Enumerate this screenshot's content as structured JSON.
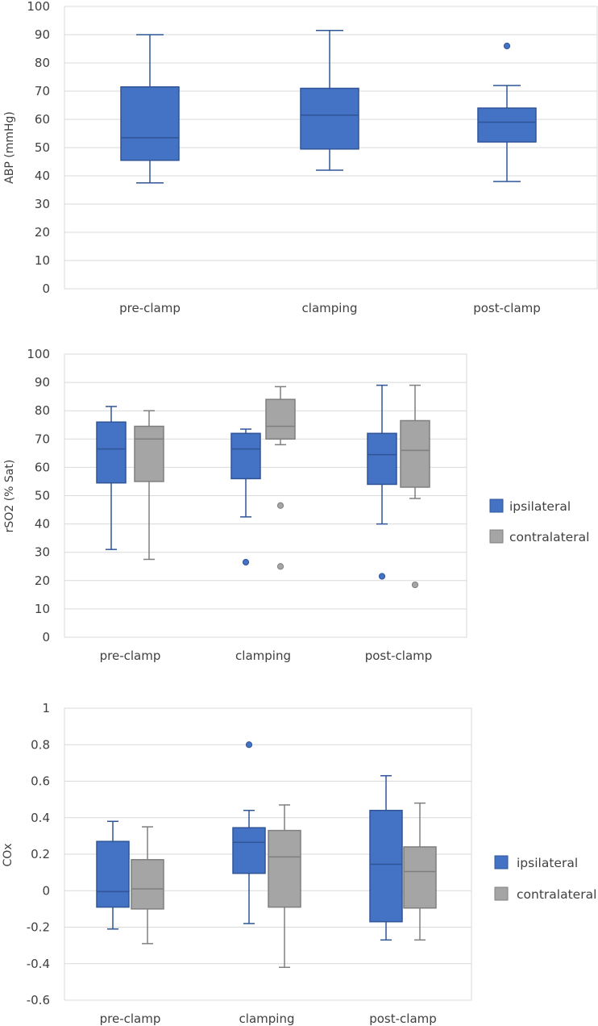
{
  "colors": {
    "ipsilateral_fill": "#4472c4",
    "ipsilateral_stroke": "#2f5597",
    "contralateral_fill": "#a5a5a5",
    "contralateral_stroke": "#7f7f7f"
  },
  "chart_data": [
    {
      "type": "box",
      "title": "",
      "xlabel": "",
      "ylabel": "ABP (mmHg)",
      "ylim": [
        0,
        100
      ],
      "yticks": [
        0,
        10,
        20,
        30,
        40,
        50,
        60,
        70,
        80,
        90,
        100
      ],
      "ytick_labels": [
        "0",
        "10",
        "20",
        "30",
        "40",
        "50",
        "60",
        "70",
        "80",
        "90",
        "100"
      ],
      "categories": [
        "pre-clamp",
        "clamping",
        "post-clamp"
      ],
      "legend": null,
      "series": [
        {
          "name": "ABP",
          "boxes": [
            {
              "category": "pre-clamp",
              "min": 37.5,
              "q1": 45.5,
              "median": 53.5,
              "q3": 71.5,
              "max": 90,
              "outliers": []
            },
            {
              "category": "clamping",
              "min": 42,
              "q1": 49.5,
              "median": 61.5,
              "q3": 71,
              "max": 91.5,
              "outliers": []
            },
            {
              "category": "post-clamp",
              "min": 38,
              "q1": 52,
              "median": 59,
              "q3": 64,
              "max": 72,
              "outliers": [
                86
              ]
            }
          ]
        }
      ]
    },
    {
      "type": "box",
      "title": "",
      "xlabel": "",
      "ylabel": "rSO2 (% Sat)",
      "ylim": [
        0,
        100
      ],
      "yticks": [
        0,
        10,
        20,
        30,
        40,
        50,
        60,
        70,
        80,
        90,
        100
      ],
      "ytick_labels": [
        "0",
        "10",
        "20",
        "30",
        "40",
        "50",
        "60",
        "70",
        "80",
        "90",
        "100"
      ],
      "categories": [
        "pre-clamp",
        "clamping",
        "post-clamp"
      ],
      "legend": [
        "ipsilateral",
        "contralateral"
      ],
      "series": [
        {
          "name": "ipsilateral",
          "boxes": [
            {
              "category": "pre-clamp",
              "min": 31,
              "q1": 54.5,
              "median": 66.5,
              "q3": 76,
              "max": 81.5,
              "outliers": []
            },
            {
              "category": "clamping",
              "min": 42.5,
              "q1": 56,
              "median": 66.5,
              "q3": 72,
              "max": 73.5,
              "outliers": [
                26.5
              ]
            },
            {
              "category": "post-clamp",
              "min": 40,
              "q1": 54,
              "median": 64.5,
              "q3": 72,
              "max": 89,
              "outliers": [
                21.5
              ]
            }
          ]
        },
        {
          "name": "contralateral",
          "boxes": [
            {
              "category": "pre-clamp",
              "min": 27.5,
              "q1": 55,
              "median": 70,
              "q3": 74.5,
              "max": 80,
              "outliers": []
            },
            {
              "category": "clamping",
              "min": 68,
              "q1": 70,
              "median": 74.5,
              "q3": 84,
              "max": 88.5,
              "outliers": [
                46.5,
                25
              ]
            },
            {
              "category": "post-clamp",
              "min": 49,
              "q1": 53,
              "median": 66,
              "q3": 76.5,
              "max": 89,
              "outliers": [
                18.5
              ]
            }
          ]
        }
      ]
    },
    {
      "type": "box",
      "title": "",
      "xlabel": "",
      "ylabel": "COx",
      "ylim": [
        -0.6,
        1
      ],
      "yticks": [
        -0.6,
        -0.4,
        -0.2,
        0,
        0.2,
        0.4,
        0.6,
        0.8,
        1
      ],
      "ytick_labels": [
        "-0.6",
        "-0.4",
        "-0.2",
        "0",
        "0.2",
        "0.4",
        "0.6",
        "0.8",
        "1"
      ],
      "categories": [
        "pre-clamp",
        "clamping",
        "post-clamp"
      ],
      "legend": [
        "ipsilateral",
        "contralateral"
      ],
      "series": [
        {
          "name": "ipsilateral",
          "boxes": [
            {
              "category": "pre-clamp",
              "min": -0.21,
              "q1": -0.09,
              "median": -0.005,
              "q3": 0.27,
              "max": 0.38,
              "outliers": []
            },
            {
              "category": "clamping",
              "min": -0.18,
              "q1": 0.095,
              "median": 0.265,
              "q3": 0.345,
              "max": 0.44,
              "outliers": [
                0.8
              ]
            },
            {
              "category": "post-clamp",
              "min": -0.27,
              "q1": -0.17,
              "median": 0.145,
              "q3": 0.44,
              "max": 0.63,
              "outliers": []
            }
          ]
        },
        {
          "name": "contralateral",
          "boxes": [
            {
              "category": "pre-clamp",
              "min": -0.29,
              "q1": -0.1,
              "median": 0.01,
              "q3": 0.17,
              "max": 0.35,
              "outliers": []
            },
            {
              "category": "clamping",
              "min": -0.42,
              "q1": -0.09,
              "median": 0.185,
              "q3": 0.33,
              "max": 0.47,
              "outliers": []
            },
            {
              "category": "post-clamp",
              "min": -0.27,
              "q1": -0.095,
              "median": 0.105,
              "q3": 0.24,
              "max": 0.48,
              "outliers": []
            }
          ]
        }
      ]
    }
  ]
}
